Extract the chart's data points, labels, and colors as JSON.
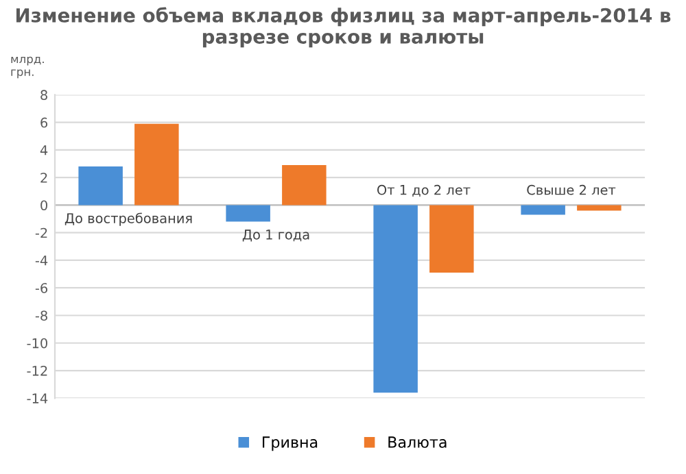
{
  "chart_data": {
    "type": "bar",
    "title": "Изменение объема вкладов физлиц за март-апрель-2014 в разрезе сроков и валюты",
    "ylabel": "млрд. грн.",
    "categories": [
      "До востребования",
      "До 1 года",
      "От 1 до 2 лет",
      "Свыше 2 лет"
    ],
    "series": [
      {
        "name": "Гривна",
        "color": "#4a8fd6",
        "values": [
          2.8,
          -1.2,
          -13.6,
          -0.7
        ]
      },
      {
        "name": "Валюта",
        "color": "#ee7a2a",
        "values": [
          5.9,
          2.9,
          -4.9,
          -0.4
        ]
      }
    ],
    "ylim": [
      -14,
      8
    ],
    "yticks": [
      -14,
      -12,
      -10,
      -8,
      -6,
      -4,
      -2,
      0,
      2,
      4,
      6,
      8
    ],
    "grid": "y",
    "legend": "bottom"
  }
}
